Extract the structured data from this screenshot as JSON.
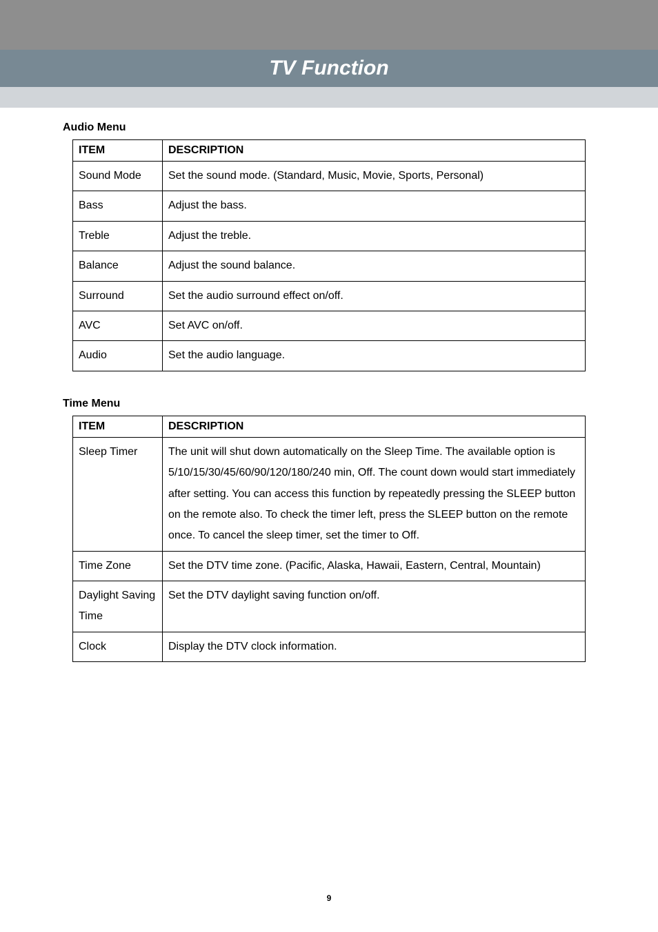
{
  "page": {
    "title": "TV Function",
    "number": "9"
  },
  "audio_menu": {
    "heading": "Audio Menu",
    "header_item": "ITEM",
    "header_desc": "DESCRIPTION",
    "rows": [
      {
        "item": "Sound Mode",
        "desc": "Set the sound mode. (Standard, Music, Movie, Sports, Personal)"
      },
      {
        "item": "Bass",
        "desc": "Adjust the bass."
      },
      {
        "item": "Treble",
        "desc": "Adjust the treble."
      },
      {
        "item": "Balance",
        "desc": "Adjust the sound balance."
      },
      {
        "item": "Surround",
        "desc": "Set the audio surround effect on/off."
      },
      {
        "item": "AVC",
        "desc": "Set AVC on/off."
      },
      {
        "item": "Audio",
        "desc": "Set the audio language."
      }
    ]
  },
  "time_menu": {
    "heading": "Time Menu",
    "header_item": "ITEM",
    "header_desc": "DESCRIPTION",
    "rows": [
      {
        "item": "Sleep Timer",
        "desc": "The unit will shut down automatically on the Sleep Time. The available option is 5/10/15/30/45/60/90/120/180/240 min, Off. The count down would start immediately after setting. You can access this function by repeatedly pressing the SLEEP button on the remote also. To check the timer left, press the SLEEP button on the remote once. To cancel the sleep timer, set the timer to Off."
      },
      {
        "item": "Time Zone",
        "desc": "Set the DTV time zone. (Pacific, Alaska, Hawaii, Eastern, Central, Mountain)"
      },
      {
        "item": "Daylight Saving Time",
        "desc": "Set the DTV daylight saving function on/off."
      },
      {
        "item": "Clock",
        "desc": "Display the DTV clock information."
      }
    ]
  }
}
